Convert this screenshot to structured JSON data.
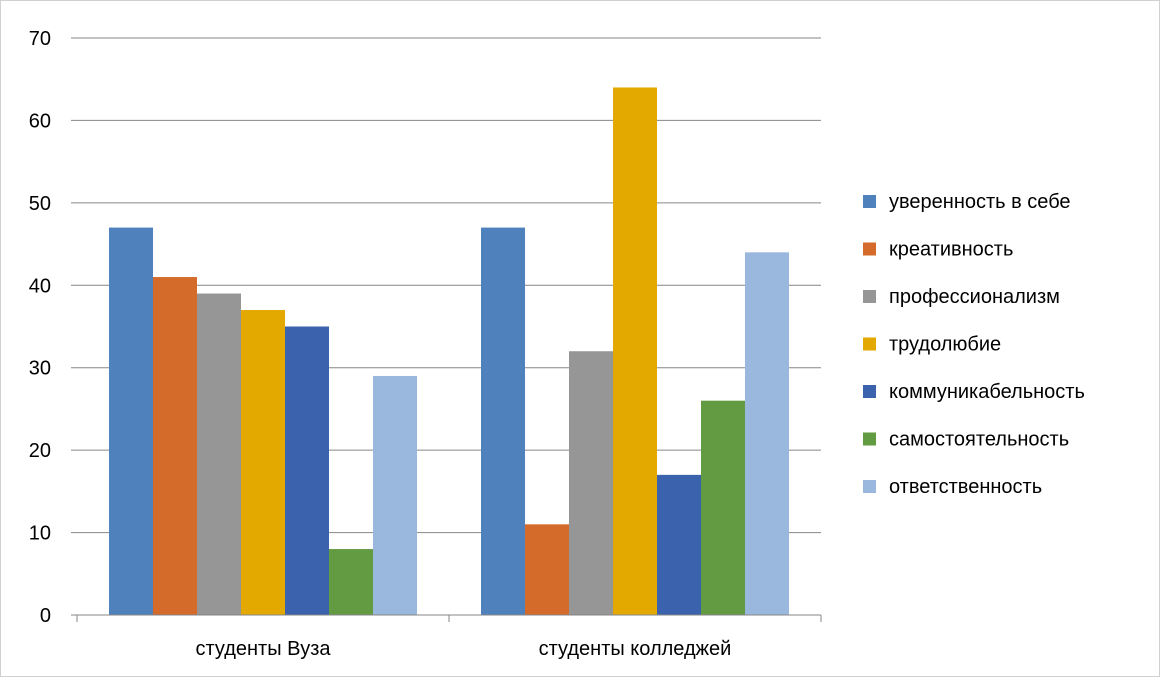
{
  "chart_data": {
    "type": "bar",
    "title": "",
    "xlabel": "",
    "ylabel": "",
    "ylim": [
      0,
      70
    ],
    "yticks": [
      0,
      10,
      20,
      30,
      40,
      50,
      60,
      70
    ],
    "grid": true,
    "legend_position": "right",
    "categories": [
      "студенты Вуза",
      "студенты колледжей"
    ],
    "series": [
      {
        "name": "уверенность в себе",
        "color": "#4f81bd",
        "values": [
          47,
          47
        ]
      },
      {
        "name": "креативность",
        "color": "#d46b2b",
        "values": [
          41,
          11
        ]
      },
      {
        "name": "профессионализм",
        "color": "#969696",
        "values": [
          39,
          32
        ]
      },
      {
        "name": "трудолюбие",
        "color": "#e3a900",
        "values": [
          37,
          64
        ]
      },
      {
        "name": "коммуникабельность",
        "color": "#3a62ad",
        "values": [
          35,
          17
        ]
      },
      {
        "name": "самостоятельность",
        "color": "#629b41",
        "values": [
          8,
          26
        ]
      },
      {
        "name": "ответственность",
        "color": "#9ab8de",
        "values": [
          29,
          44
        ]
      }
    ]
  }
}
